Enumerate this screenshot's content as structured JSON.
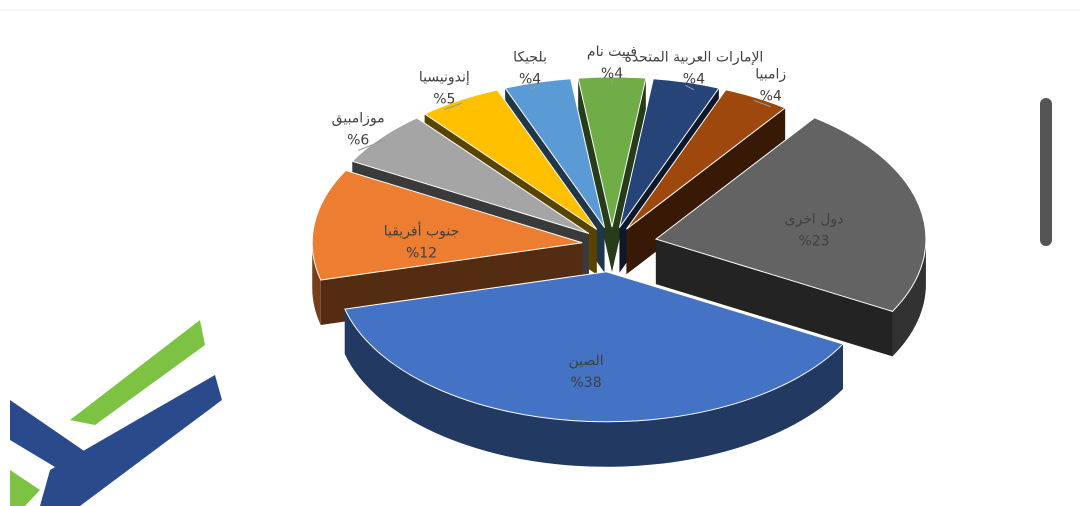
{
  "chart_data": {
    "type": "pie",
    "categories": [
      "الإمارات العربية المتحدة",
      "زامبيا",
      "دول اخرى",
      "الصين",
      "جنوب أفريقيا",
      "موزامبيق",
      "إندونيسيا",
      "بلجيكا",
      "فييت نام"
    ],
    "values": [
      4,
      4,
      23,
      38,
      12,
      6,
      5,
      4,
      4
    ],
    "value_labels": [
      "%4",
      "%4",
      "%23",
      "%38",
      "%12",
      "%6",
      "%5",
      "%4",
      "%4"
    ],
    "colors": [
      "#264478",
      "#9e480e",
      "#636363",
      "#4472c4",
      "#ed7d31",
      "#a5a5a5",
      "#ffc000",
      "#5b9bd5",
      "#70ad47"
    ]
  }
}
